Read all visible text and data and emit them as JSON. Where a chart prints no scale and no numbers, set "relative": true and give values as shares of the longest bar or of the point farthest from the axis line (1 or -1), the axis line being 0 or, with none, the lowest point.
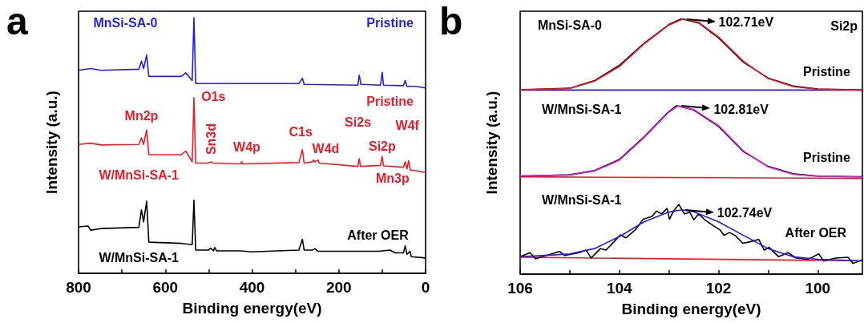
{
  "chart_data": [
    {
      "type": "line",
      "relative": true,
      "xlabel": "Binding energy(eV)",
      "ylabel": "Intensity (a.u.)",
      "xlim": [
        800,
        0
      ],
      "xticks": [
        800,
        {
          "value": 700,
          "label": null
        },
        600,
        {
          "value": 500,
          "label": null
        },
        400,
        {
          "value": 300,
          "label": null
        },
        200,
        {
          "value": 100,
          "label": null
        },
        0
      ],
      "series": [
        {
          "color": "#1f1ff0",
          "x": [
            800,
            772,
            748,
            661,
            655,
            650,
            643,
            638,
            563,
            553,
            538,
            534,
            530,
            292,
            284,
            280,
            156,
            153,
            149,
            104,
            100,
            97,
            51,
            47,
            43,
            23,
            0
          ],
          "values": [
            0.794,
            0.801,
            0.794,
            0.798,
            0.83,
            0.801,
            0.854,
            0.77,
            0.77,
            0.784,
            0.754,
            1.0,
            0.742,
            0.742,
            0.763,
            0.739,
            0.736,
            0.775,
            0.739,
            0.736,
            0.786,
            0.736,
            0.734,
            0.754,
            0.731,
            0.731,
            0.725
          ]
        },
        {
          "color": "#ee1c25",
          "x": [
            800,
            772,
            748,
            661,
            655,
            650,
            643,
            638,
            563,
            553,
            538,
            534,
            530,
            501,
            495,
            489,
            427,
            424,
            421,
            292,
            284,
            280,
            261,
            258,
            255,
            248,
            245,
            156,
            153,
            150,
            104,
            100,
            97,
            51,
            47,
            43,
            39,
            35,
            23,
            0
          ],
          "values": [
            0.504,
            0.509,
            0.502,
            0.504,
            0.53,
            0.504,
            0.561,
            0.464,
            0.464,
            0.478,
            0.436,
            0.687,
            0.431,
            0.431,
            0.436,
            0.431,
            0.428,
            0.436,
            0.428,
            0.433,
            0.483,
            0.431,
            0.436,
            0.443,
            0.436,
            0.443,
            0.431,
            0.418,
            0.449,
            0.418,
            0.422,
            0.457,
            0.42,
            0.415,
            0.436,
            0.408,
            0.441,
            0.404,
            0.401,
            0.394
          ]
        },
        {
          "color": "#000000",
          "x": [
            800,
            778,
            772,
            748,
            661,
            655,
            650,
            643,
            638,
            563,
            538,
            534,
            530,
            501,
            495,
            489,
            486,
            482,
            427,
            402,
            292,
            284,
            280,
            261,
            255,
            248,
            156,
            107,
            82,
            70,
            51,
            47,
            43,
            36,
            33,
            0
          ],
          "values": [
            0.182,
            0.185,
            0.169,
            0.175,
            0.18,
            0.248,
            0.201,
            0.282,
            0.122,
            0.117,
            0.112,
            0.286,
            0.091,
            0.091,
            0.098,
            0.088,
            0.101,
            0.088,
            0.088,
            0.084,
            0.091,
            0.133,
            0.091,
            0.091,
            0.096,
            0.086,
            0.086,
            0.086,
            0.091,
            0.08,
            0.08,
            0.107,
            0.075,
            0.086,
            0.065,
            0.06
          ]
        }
      ],
      "annotations": [
        "a",
        "MnSi-SA-0",
        "Pristine",
        "O1s",
        "Pristine",
        "Mn2p",
        "Sn3d",
        "W4p",
        "C1s",
        "W4d",
        "Si2s",
        "W4f",
        "Si2p",
        "Mn3p",
        "W/MnSi-SA-1",
        "After OER",
        "W/MnSi-SA-1"
      ]
    },
    {
      "type": "line",
      "relative": true,
      "xlabel": "Binding energy(eV)",
      "ylabel": "Intensity (a.u.)",
      "xlim": [
        106,
        99.1
      ],
      "xticks": [
        106,
        {
          "value": 105,
          "label": null
        },
        104,
        {
          "value": 103,
          "label": null
        },
        102,
        {
          "value": 101,
          "label": null
        },
        100
      ],
      "series": [
        {
          "color": "#1f1ff0",
          "x": [
            106,
            99.1
          ],
          "values": [
            0.721,
            0.721
          ]
        },
        {
          "color": "#ee1c25",
          "x": [
            106,
            99.1
          ],
          "values": [
            0.381,
            0.375
          ]
        },
        {
          "color": "#ee1c25",
          "x": [
            106,
            99.1
          ],
          "values": [
            0.066,
            0.052
          ]
        },
        {
          "color": "#000000",
          "x": [
            106,
            105,
            104.5,
            104,
            103.5,
            103,
            102.75,
            102.4,
            102,
            101.5,
            101,
            100.5,
            100,
            99.1
          ],
          "values": [
            0.722,
            0.728,
            0.758,
            0.818,
            0.905,
            0.978,
            1.0,
            0.984,
            0.925,
            0.83,
            0.768,
            0.737,
            0.725,
            0.721
          ]
        },
        {
          "color": "#000000",
          "x": [
            106,
            105,
            104.5,
            104,
            103.5,
            103,
            102.85,
            102.5,
            102,
            101.5,
            101,
            100.5,
            100,
            99.1
          ],
          "values": [
            0.384,
            0.389,
            0.406,
            0.449,
            0.538,
            0.637,
            0.66,
            0.643,
            0.579,
            0.48,
            0.422,
            0.393,
            0.384,
            0.381
          ]
        },
        {
          "color": "#000000",
          "x": [
            106,
            105.8,
            105.69,
            105.21,
            105.1,
            104.81,
            104.67,
            104.57,
            104.38,
            104.27,
            104.11,
            103.98,
            103.87,
            103.68,
            103.52,
            103.34,
            103.25,
            103.15,
            103.04,
            102.99,
            102.91,
            102.8,
            102.69,
            102.58,
            102.5,
            102.4,
            102.29,
            102.1,
            101.97,
            101.89,
            101.78,
            101.67,
            101.51,
            101.38,
            101.19,
            101.08,
            100.98,
            100.79,
            100.6,
            100.44,
            100.2,
            99.98,
            99.88,
            99.64,
            99.39,
            99.29,
            99.1
          ],
          "values": [
            0.068,
            0.084,
            0.06,
            0.089,
            0.073,
            0.084,
            0.094,
            0.063,
            0.1,
            0.094,
            0.126,
            0.154,
            0.142,
            0.173,
            0.215,
            0.226,
            0.247,
            0.236,
            0.257,
            0.215,
            0.247,
            0.273,
            0.236,
            0.242,
            0.213,
            0.236,
            0.215,
            0.189,
            0.173,
            0.152,
            0.163,
            0.152,
            0.121,
            0.126,
            0.136,
            0.094,
            0.105,
            0.068,
            0.084,
            0.063,
            0.058,
            0.079,
            0.052,
            0.063,
            0.066,
            0.042,
            0.056
          ]
        },
        {
          "color": "#ee1c25",
          "x": [
            106,
            105,
            104.5,
            104,
            103.5,
            103,
            102.71,
            102.4,
            102,
            101.5,
            101,
            100.5,
            100,
            99.1
          ],
          "values": [
            0.722,
            0.727,
            0.756,
            0.813,
            0.902,
            0.976,
            1.0,
            0.986,
            0.929,
            0.834,
            0.766,
            0.735,
            0.724,
            0.721
          ]
        },
        {
          "color": "#e61ee6",
          "x": [
            106,
            105,
            104.5,
            104,
            103.5,
            103,
            102.81,
            102.5,
            102,
            101.5,
            101,
            100.5,
            100,
            99.1
          ],
          "values": [
            0.385,
            0.388,
            0.404,
            0.446,
            0.535,
            0.635,
            0.659,
            0.645,
            0.582,
            0.483,
            0.42,
            0.391,
            0.383,
            0.38
          ]
        },
        {
          "color": "#1f1ff0",
          "x": [
            106,
            105,
            104.5,
            104,
            103.5,
            103,
            102.74,
            102.5,
            102,
            101.5,
            101,
            100.5,
            100,
            99.1
          ],
          "values": [
            0.068,
            0.079,
            0.1,
            0.147,
            0.205,
            0.243,
            0.252,
            0.244,
            0.205,
            0.152,
            0.1,
            0.068,
            0.058,
            0.052
          ]
        }
      ],
      "annotations": [
        "b",
        "MnSi-SA-0",
        {
          "text": "102.71eV",
          "x": 102.71,
          "y": 1.0
        },
        "Si2p",
        "Pristine",
        "W/MnSi-SA-1",
        {
          "text": "102.81eV",
          "x": 102.81,
          "y": 0.659
        },
        "Pristine",
        "W/MnSi-SA-1",
        {
          "text": "102.74eV",
          "x": 102.74,
          "y": 0.252
        },
        "After OER"
      ]
    }
  ]
}
